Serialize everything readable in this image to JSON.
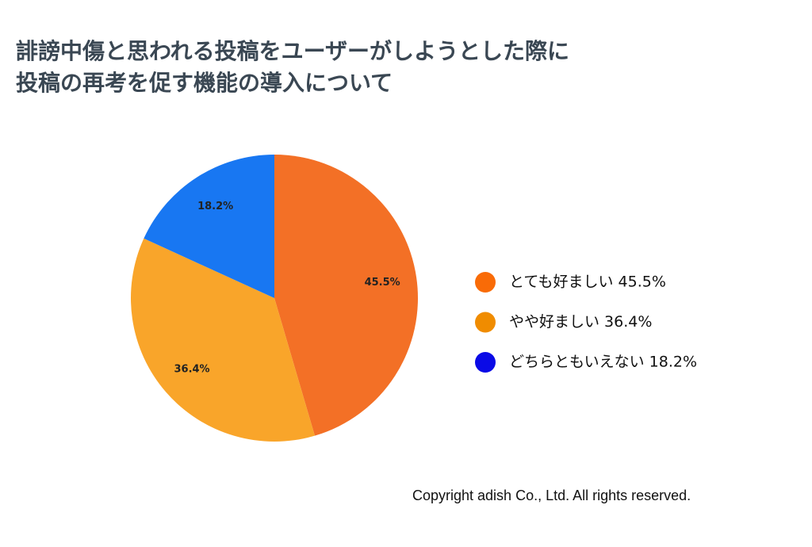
{
  "chart_data": {
    "type": "pie",
    "title": [
      "誹謗中傷と思われる投稿をユーザーがしようとした際に",
      "投稿の再考を促す機能の導入について"
    ],
    "categories": [
      "とても好ましい 45.5%",
      "やや好ましい 36.4%",
      "どちらともいえない 18.2%"
    ],
    "values": [
      45.5,
      36.4,
      18.2
    ],
    "value_labels": [
      "45.5%",
      "36.4%",
      "18.2%"
    ],
    "colors": [
      "#f37026",
      "#f9a52a",
      "#1877f2"
    ],
    "legend_colors": [
      "#f96b07",
      "#f08c00",
      "#0a0ae6"
    ],
    "legend": "right",
    "footnote": "Copyright adish Co., Ltd. All rights reserved."
  }
}
